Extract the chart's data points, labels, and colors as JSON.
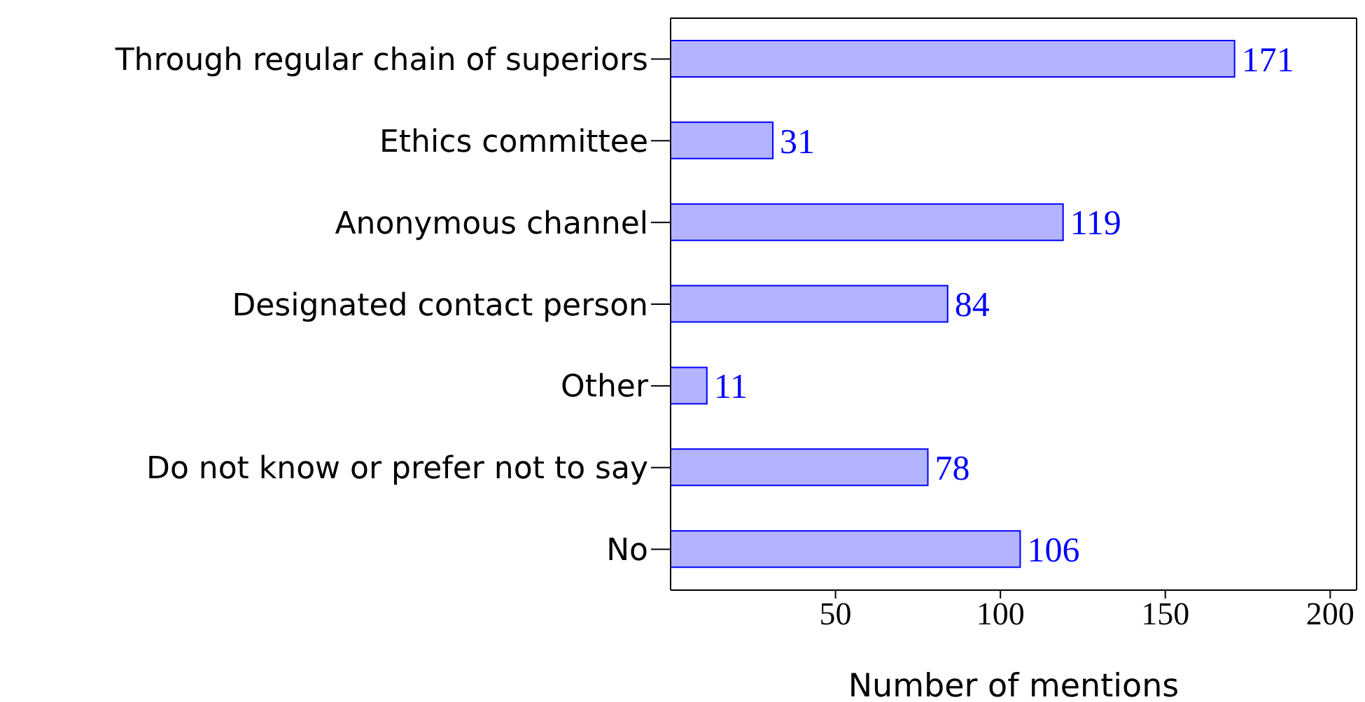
{
  "chart_data": {
    "type": "bar",
    "orientation": "horizontal",
    "xlabel": "Number of mentions",
    "categories": [
      "Through regular chain of superiors",
      "Ethics committee",
      "Anonymous channel",
      "Designated contact person",
      "Other",
      "Do not know or prefer not to say",
      "No"
    ],
    "values": [
      171,
      31,
      119,
      84,
      11,
      78,
      106
    ],
    "color": "#b3b3ff",
    "data_labels": true,
    "xlim": [
      0,
      208
    ],
    "xticks": [
      50,
      100,
      150,
      200
    ],
    "grid": false,
    "legend": false
  }
}
